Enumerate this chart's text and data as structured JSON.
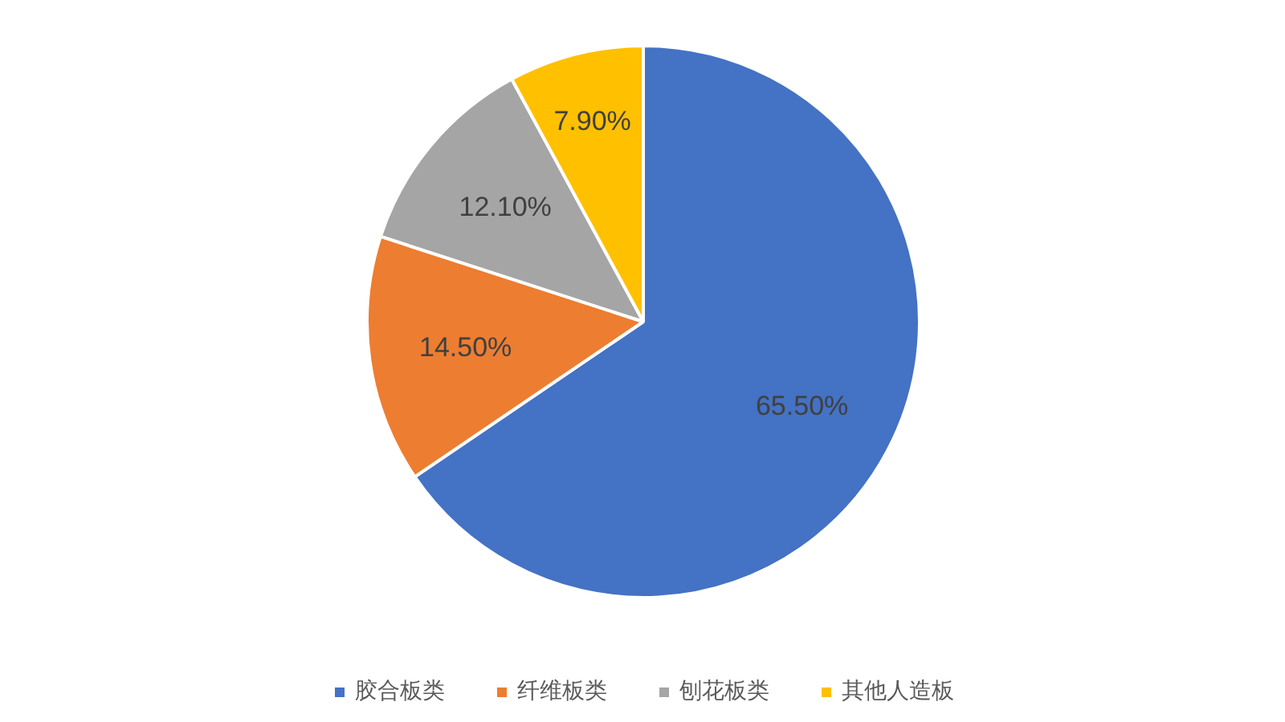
{
  "chart_data": {
    "type": "pie",
    "categories": [
      "胶合板类",
      "纤维板类",
      "刨花板类",
      "其他人造板"
    ],
    "values": [
      65.5,
      14.5,
      12.1,
      7.9
    ],
    "colors": [
      "#4472c4",
      "#ed7d31",
      "#a5a5a5",
      "#ffc000"
    ],
    "value_labels": [
      "65.50%",
      "14.50%",
      "12.10%",
      "7.90%"
    ],
    "legend": "bottom"
  }
}
